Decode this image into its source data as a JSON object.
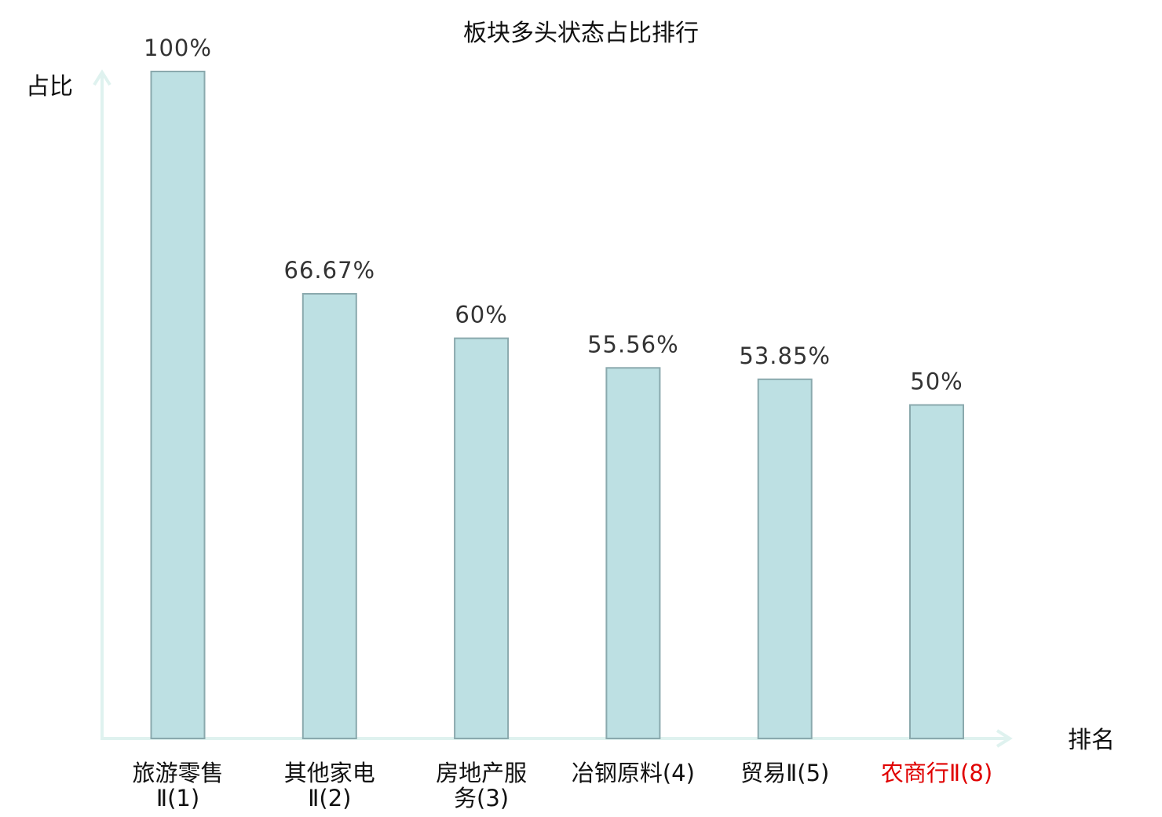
{
  "chart_data": {
    "type": "bar",
    "title": "板块多头状态占比排行",
    "ylabel": "占比",
    "xlabel": "排名",
    "categories": [
      {
        "line1": "旅游零售",
        "line2": "Ⅱ(1)",
        "highlight": false
      },
      {
        "line1": "其他家电",
        "line2": "Ⅱ(2)",
        "highlight": false
      },
      {
        "line1": "房地产服",
        "line2": "务(3)",
        "highlight": false
      },
      {
        "line1": "冶钢原料(4)",
        "line2": "",
        "highlight": false
      },
      {
        "line1": "贸易Ⅱ(5)",
        "line2": "",
        "highlight": false
      },
      {
        "line1": "农商行Ⅱ(8)",
        "line2": "",
        "highlight": true
      }
    ],
    "values": [
      100,
      66.67,
      60,
      55.56,
      53.85,
      50
    ],
    "value_labels": [
      "100%",
      "66.67%",
      "60%",
      "55.56%",
      "53.85%",
      "50%"
    ],
    "ylim": [
      0,
      100
    ],
    "grid": false,
    "colors": {
      "bar_fill": "#bde0e3",
      "bar_stroke": "#8aa9ad",
      "axis": "#dff2ef",
      "highlight_text": "#e00000",
      "normal_text": "#333333"
    }
  }
}
